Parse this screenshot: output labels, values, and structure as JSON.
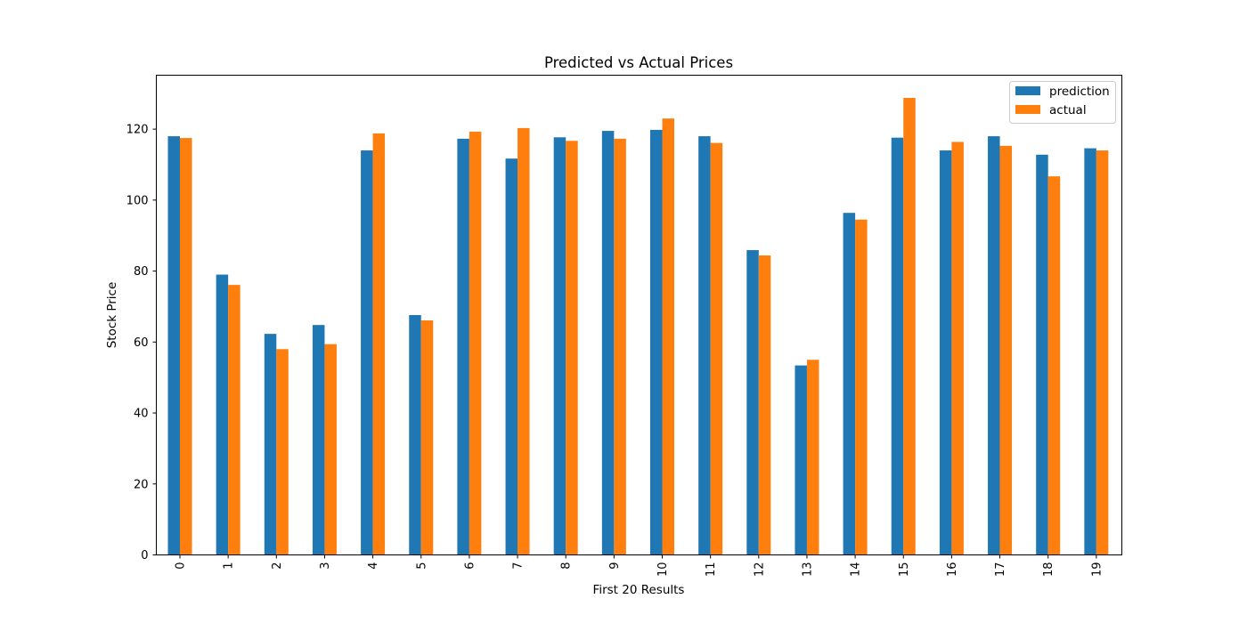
{
  "chart_data": {
    "type": "bar",
    "title": "Predicted vs Actual Prices",
    "xlabel": "First 20 Results",
    "ylabel": "Stock Price",
    "categories": [
      "0",
      "1",
      "2",
      "3",
      "4",
      "5",
      "6",
      "7",
      "8",
      "9",
      "10",
      "11",
      "12",
      "13",
      "14",
      "15",
      "16",
      "17",
      "18",
      "19"
    ],
    "series": [
      {
        "name": "prediction",
        "color": "#1f77b4",
        "values": [
          118.0,
          79.0,
          62.3,
          64.8,
          114.0,
          67.6,
          117.3,
          111.7,
          117.7,
          119.5,
          119.8,
          118.0,
          85.9,
          53.4,
          96.4,
          117.6,
          114.0,
          118.0,
          112.8,
          114.6
        ]
      },
      {
        "name": "actual",
        "color": "#ff7f0e",
        "values": [
          117.5,
          76.1,
          58.0,
          59.4,
          118.8,
          66.1,
          119.3,
          120.3,
          116.7,
          117.3,
          123.0,
          116.1,
          84.4,
          55.0,
          94.5,
          128.8,
          116.4,
          115.3,
          106.7,
          114.0
        ]
      }
    ],
    "yticks": [
      0,
      20,
      40,
      60,
      80,
      100,
      120
    ],
    "ylim": [
      0,
      135.2
    ],
    "grid": false,
    "legend_position": "top-right"
  }
}
